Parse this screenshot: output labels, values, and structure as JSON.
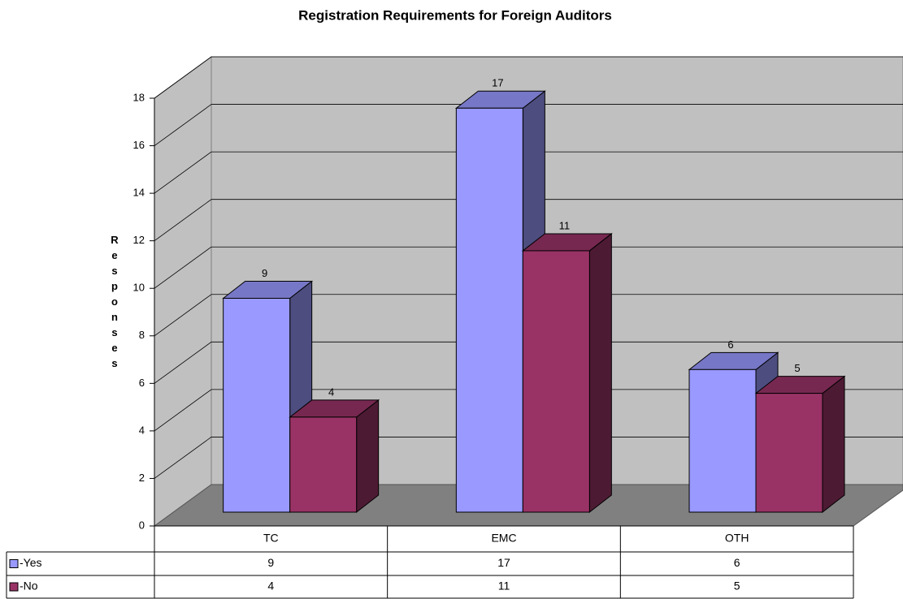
{
  "chart_data": {
    "type": "bar3d",
    "title": "Registration Requirements for Foreign Auditors",
    "y_label": "Responses",
    "categories": [
      "TC",
      "EMC",
      "OTH"
    ],
    "series": [
      {
        "name": "-Yes",
        "color": "#9999ff",
        "values": [
          9,
          17,
          6
        ]
      },
      {
        "name": "-No",
        "color": "#993366",
        "values": [
          4,
          11,
          5
        ]
      }
    ],
    "ylim": [
      0,
      18
    ],
    "yticks": [
      0,
      2,
      4,
      6,
      8,
      10,
      12,
      14,
      16,
      18
    ],
    "grid": true
  }
}
